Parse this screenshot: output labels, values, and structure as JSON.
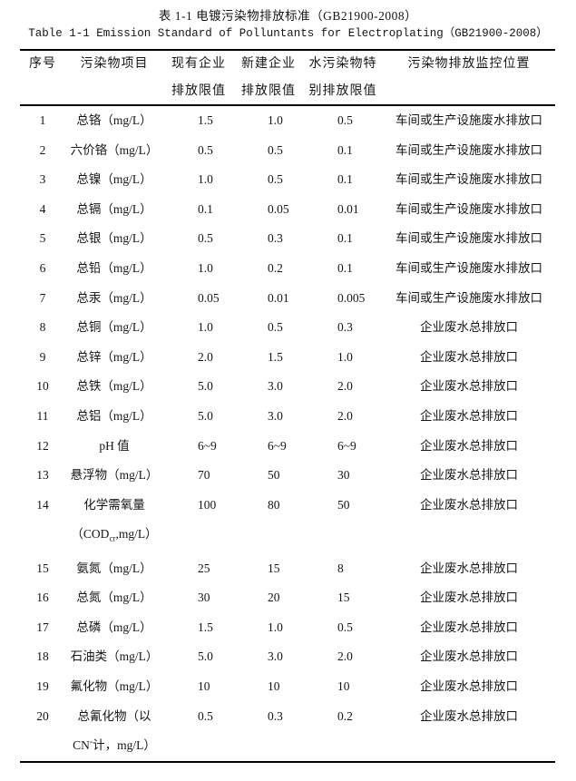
{
  "page": {
    "title_zh": "表 1-1 电镀污染物排放标准（GB21900-2008）",
    "title_en": "Table 1-1 Emission Standard of Polluntants for Electroplating（GB21900-2008）"
  },
  "table": {
    "columns": {
      "no": "序号",
      "item": "污染物项目",
      "existing": [
        "现有企业",
        "排放限值"
      ],
      "new_build": [
        "新建企业",
        "排放限值"
      ],
      "special": [
        "水污染物特",
        "别排放限值"
      ],
      "location": "污染物排放监控位置"
    },
    "rows": [
      {
        "no": "1",
        "item": [
          [
            "总铬（mg/L）"
          ]
        ],
        "existing": "1.5",
        "new_build": "1.0",
        "special": "0.5",
        "location": "车间或生产设施废水排放口"
      },
      {
        "no": "2",
        "item": [
          [
            "六价铬（mg/L）"
          ]
        ],
        "existing": "0.5",
        "new_build": "0.5",
        "special": "0.1",
        "location": "车间或生产设施废水排放口"
      },
      {
        "no": "3",
        "item": [
          [
            "总镍（mg/L）"
          ]
        ],
        "existing": "1.0",
        "new_build": "0.5",
        "special": "0.1",
        "location": "车间或生产设施废水排放口"
      },
      {
        "no": "4",
        "item": [
          [
            "总镉（mg/L）"
          ]
        ],
        "existing": "0.1",
        "new_build": "0.05",
        "special": "0.01",
        "location": "车间或生产设施废水排放口"
      },
      {
        "no": "5",
        "item": [
          [
            "总银（mg/L）"
          ]
        ],
        "existing": "0.5",
        "new_build": "0.3",
        "special": "0.1",
        "location": "车间或生产设施废水排放口"
      },
      {
        "no": "6",
        "item": [
          [
            "总铅（mg/L）"
          ]
        ],
        "existing": "1.0",
        "new_build": "0.2",
        "special": "0.1",
        "location": "车间或生产设施废水排放口"
      },
      {
        "no": "7",
        "item": [
          [
            "总汞（mg/L）"
          ]
        ],
        "existing": "0.05",
        "new_build": "0.01",
        "special": "0.005",
        "location": "车间或生产设施废水排放口"
      },
      {
        "no": "8",
        "item": [
          [
            "总铜（mg/L）"
          ]
        ],
        "existing": "1.0",
        "new_build": "0.5",
        "special": "0.3",
        "location": "企业废水总排放口"
      },
      {
        "no": "9",
        "item": [
          [
            "总锌（mg/L）"
          ]
        ],
        "existing": "2.0",
        "new_build": "1.5",
        "special": "1.0",
        "location": "企业废水总排放口"
      },
      {
        "no": "10",
        "item": [
          [
            "总铁（mg/L）"
          ]
        ],
        "existing": "5.0",
        "new_build": "3.0",
        "special": "2.0",
        "location": "企业废水总排放口"
      },
      {
        "no": "11",
        "item": [
          [
            "总铝（mg/L）"
          ]
        ],
        "existing": "5.0",
        "new_build": "3.0",
        "special": "2.0",
        "location": "企业废水总排放口"
      },
      {
        "no": "12",
        "item": [
          [
            "pH 值"
          ]
        ],
        "existing": "6~9",
        "new_build": "6~9",
        "special": "6~9",
        "location": "企业废水总排放口"
      },
      {
        "no": "13",
        "item": [
          [
            "悬浮物（mg/L）"
          ]
        ],
        "existing": "70",
        "new_build": "50",
        "special": "30",
        "location": "企业废水总排放口"
      },
      {
        "no": "14",
        "item": [
          [
            "化学需氧量"
          ],
          [
            "（COD",
            {
              "sub": "cr"
            },
            ",mg/L）"
          ]
        ],
        "existing": "100",
        "new_build": "80",
        "special": "50",
        "location": "企业废水总排放口"
      },
      {
        "no": "15",
        "item": [
          [
            "氨氮（mg/L）"
          ]
        ],
        "existing": "25",
        "new_build": "15",
        "special": "8",
        "location": "企业废水总排放口"
      },
      {
        "no": "16",
        "item": [
          [
            "总氮（mg/L）"
          ]
        ],
        "existing": "30",
        "new_build": "20",
        "special": "15",
        "location": "企业废水总排放口"
      },
      {
        "no": "17",
        "item": [
          [
            "总磷（mg/L）"
          ]
        ],
        "existing": "1.5",
        "new_build": "1.0",
        "special": "0.5",
        "location": "企业废水总排放口"
      },
      {
        "no": "18",
        "item": [
          [
            "石油类（mg/L）"
          ]
        ],
        "existing": "5.0",
        "new_build": "3.0",
        "special": "2.0",
        "location": "企业废水总排放口"
      },
      {
        "no": "19",
        "item": [
          [
            "氟化物（mg/L）"
          ]
        ],
        "existing": "10",
        "new_build": "10",
        "special": "10",
        "location": "企业废水总排放口"
      },
      {
        "no": "20",
        "item": [
          [
            "总氰化物（以"
          ],
          [
            "CN",
            {
              "sup": "-"
            },
            "计，mg/L）"
          ]
        ],
        "existing": "0.5",
        "new_build": "0.3",
        "special": "0.2",
        "location": "企业废水总排放口"
      }
    ]
  }
}
